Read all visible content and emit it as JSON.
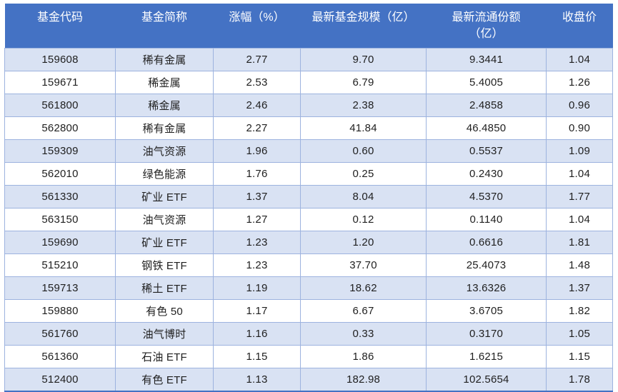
{
  "chart_data": {
    "type": "table",
    "title": "",
    "columns": [
      {
        "key": "fund_code",
        "label": "基金代码"
      },
      {
        "key": "fund_name",
        "label": "基金简称"
      },
      {
        "key": "change_pct",
        "label": "涨幅（%）"
      },
      {
        "key": "latest_fund_size_yi",
        "label": "最新基金规模（亿）"
      },
      {
        "key": "latest_circulating_shares_yi",
        "label": "最新流通份额\n（亿）"
      },
      {
        "key": "close_price",
        "label": "收盘价"
      }
    ],
    "rows": [
      [
        "159608",
        "稀有金属",
        "2.77",
        "9.70",
        "9.3441",
        "1.04"
      ],
      [
        "159671",
        "稀金属",
        "2.53",
        "6.79",
        "5.4005",
        "1.26"
      ],
      [
        "561800",
        "稀金属",
        "2.46",
        "2.38",
        "2.4858",
        "0.96"
      ],
      [
        "562800",
        "稀有金属",
        "2.27",
        "41.84",
        "46.4850",
        "0.90"
      ],
      [
        "159309",
        "油气资源",
        "1.96",
        "0.60",
        "0.5537",
        "1.09"
      ],
      [
        "562010",
        "绿色能源",
        "1.76",
        "0.25",
        "0.2430",
        "1.04"
      ],
      [
        "561330",
        "矿业 ETF",
        "1.37",
        "8.04",
        "4.5370",
        "1.77"
      ],
      [
        "563150",
        "油气资源",
        "1.27",
        "0.12",
        "0.1140",
        "1.04"
      ],
      [
        "159690",
        "矿业 ETF",
        "1.23",
        "1.20",
        "0.6616",
        "1.81"
      ],
      [
        "515210",
        "钢铁 ETF",
        "1.23",
        "37.70",
        "25.4073",
        "1.48"
      ],
      [
        "159713",
        "稀土 ETF",
        "1.19",
        "18.62",
        "13.6326",
        "1.37"
      ],
      [
        "159880",
        "有色 50",
        "1.17",
        "6.67",
        "3.6705",
        "1.82"
      ],
      [
        "561760",
        "油气博时",
        "1.16",
        "0.33",
        "0.3170",
        "1.05"
      ],
      [
        "561360",
        "石油 ETF",
        "1.15",
        "1.86",
        "1.6215",
        "1.15"
      ],
      [
        "512400",
        "有色 ETF",
        "1.13",
        "182.98",
        "102.5654",
        "1.78"
      ]
    ],
    "layout": {
      "banded_rows": "odd",
      "header_lines": 2,
      "grid": true
    },
    "colors": {
      "header_bg": "#4472C4",
      "header_text": "#FFFFFF",
      "band_bg": "#D9E2F3",
      "row_bg": "#FFFFFF",
      "grid_border": "#9DB3DF",
      "outer_bottom_border": "#4472C4",
      "cell_text": "#1F1F1F"
    }
  }
}
